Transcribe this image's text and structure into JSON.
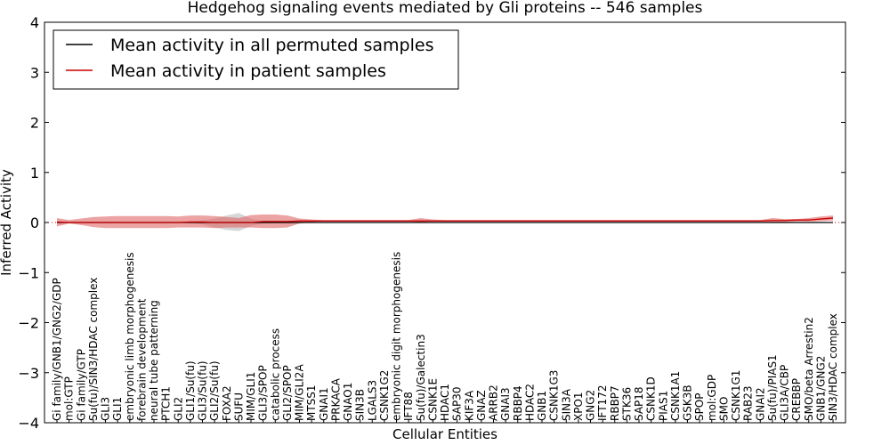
{
  "chart_data": {
    "type": "line",
    "title": "Hedgehog signaling events mediated by Gli proteins -- 546 samples",
    "xlabel": "Cellular Entities",
    "ylabel": "Inferred Activity",
    "ylim": [
      -4,
      4
    ],
    "yticks": [
      -4,
      -3,
      -2,
      -1,
      0,
      1,
      2,
      3,
      4
    ],
    "ytick_labels": [
      "−4",
      "−3",
      "−2",
      "−1",
      "0",
      "1",
      "2",
      "3",
      "4"
    ],
    "legend_position": "top-left",
    "colors": {
      "permuted": "#000000",
      "patient": "#cc0000",
      "band": "#e06666",
      "perm_band": "#bbbbbb"
    },
    "categories": [
      "Gi family/GNB1/GNG2/GDP",
      "mol:GTP",
      "Gi family/GTP",
      "Su(fu)/SIN3/HDAC complex",
      "GLI3",
      "GLI1",
      "embryonic limb morphogenesis",
      "forebrain development",
      "neural tube patterning",
      "PTCH1",
      "GLI2",
      "GLI1/Su(fu)",
      "GLI3/Su(fu)",
      "GLI2/Su(fu)",
      "FOXA2",
      "SUFU",
      "MIM/GLI1",
      "GLI3/SPOP",
      "catabolic process",
      "GLI2/SPOP",
      "MIM/GLI2A",
      "MTSS1",
      "GNAI1",
      "PRKACA",
      "GNAO1",
      "SIN3B",
      "LGALS3",
      "CSNK1G2",
      "embryonic digit morphogenesis",
      "IFT88",
      "Su(fu)/Galectin3",
      "CSNK1E",
      "HDAC1",
      "SAP30",
      "KIF3A",
      "GNAZ",
      "ARRB2",
      "GNAI3",
      "RBBP4",
      "HDAC2",
      "GNB1",
      "CSNK1G3",
      "SIN3A",
      "XPO1",
      "GNG2",
      "IFT172",
      "RBBP7",
      "STK36",
      "SAP18",
      "CSNK1D",
      "PIAS1",
      "CSNK1A1",
      "GSK3B",
      "SPOP",
      "mol:GDP",
      "SMO",
      "CSNK1G1",
      "RAB23",
      "GNAI2",
      "Su(fu)/PIAS1",
      "GLI3A/CBP",
      "CREBBP",
      "SMO/beta Arrestin2",
      "GNB1/GNG2",
      "SIN3/HDAC complex"
    ],
    "series": [
      {
        "name": "Mean activity in all permuted samples",
        "values": [
          0,
          0,
          0,
          0,
          0,
          0,
          0,
          0,
          0,
          0,
          0,
          0,
          0,
          0,
          0,
          0,
          0,
          0,
          0,
          0,
          0,
          0,
          0,
          0,
          0,
          0,
          0,
          0,
          0,
          0,
          0,
          0,
          0,
          0,
          0,
          0,
          0,
          0,
          0,
          0,
          0,
          0,
          0,
          0,
          0,
          0,
          0,
          0,
          0,
          0,
          0,
          0,
          0,
          0,
          0,
          0,
          0,
          0,
          0,
          0,
          0,
          0,
          0,
          0,
          0
        ]
      },
      {
        "name": "Mean activity in patient samples",
        "values": [
          0.01,
          0.0,
          0.0,
          0.0,
          0.0,
          0.0,
          0.0,
          0.0,
          0.0,
          0.0,
          0.0,
          0.01,
          0.01,
          0.0,
          0.0,
          0.0,
          0.0,
          0.02,
          0.02,
          0.02,
          0.03,
          0.03,
          0.03,
          0.03,
          0.03,
          0.03,
          0.03,
          0.03,
          0.03,
          0.03,
          0.03,
          0.03,
          0.03,
          0.03,
          0.03,
          0.03,
          0.03,
          0.03,
          0.03,
          0.03,
          0.03,
          0.03,
          0.03,
          0.03,
          0.03,
          0.03,
          0.03,
          0.03,
          0.03,
          0.03,
          0.03,
          0.03,
          0.03,
          0.03,
          0.03,
          0.03,
          0.03,
          0.03,
          0.03,
          0.04,
          0.04,
          0.05,
          0.05,
          0.07,
          0.09
        ]
      }
    ],
    "patient_band": {
      "upper": [
        0.09,
        0.05,
        0.08,
        0.11,
        0.12,
        0.13,
        0.13,
        0.13,
        0.13,
        0.13,
        0.12,
        0.14,
        0.14,
        0.13,
        0.11,
        0.09,
        0.15,
        0.16,
        0.16,
        0.14,
        0.08,
        0.06,
        0.05,
        0.05,
        0.05,
        0.05,
        0.05,
        0.05,
        0.05,
        0.05,
        0.09,
        0.06,
        0.05,
        0.05,
        0.05,
        0.05,
        0.05,
        0.05,
        0.05,
        0.05,
        0.05,
        0.05,
        0.05,
        0.05,
        0.05,
        0.05,
        0.05,
        0.05,
        0.05,
        0.05,
        0.05,
        0.05,
        0.05,
        0.05,
        0.05,
        0.05,
        0.05,
        0.05,
        0.05,
        0.09,
        0.07,
        0.07,
        0.09,
        0.12,
        0.14
      ],
      "lower": [
        -0.08,
        -0.02,
        -0.05,
        -0.09,
        -0.11,
        -0.11,
        -0.11,
        -0.11,
        -0.11,
        -0.11,
        -0.1,
        -0.1,
        -0.1,
        -0.11,
        -0.1,
        -0.1,
        -0.1,
        -0.11,
        -0.11,
        -0.1,
        -0.02,
        0.01,
        0.02,
        0.02,
        0.02,
        0.02,
        0.02,
        0.02,
        0.02,
        0.02,
        0.01,
        0.02,
        0.02,
        0.02,
        0.02,
        0.02,
        0.02,
        0.02,
        0.02,
        0.02,
        0.02,
        0.02,
        0.02,
        0.02,
        0.02,
        0.02,
        0.02,
        0.02,
        0.02,
        0.02,
        0.02,
        0.02,
        0.02,
        0.02,
        0.02,
        0.02,
        0.02,
        0.02,
        0.02,
        0.01,
        0.01,
        0.02,
        0.02,
        0.03,
        0.04
      ]
    },
    "permuted_band": {
      "upper": [
        0.0,
        0.0,
        0.0,
        0.0,
        0.0,
        0.0,
        0.0,
        0.0,
        0.0,
        0.0,
        0.0,
        0.0,
        0.04,
        0.08,
        0.14,
        0.19,
        0.08,
        0.02,
        0.0,
        0.0,
        0.0,
        0.0,
        0.0,
        0.0,
        0.0,
        0.0,
        0.0,
        0.0,
        0.0,
        0.0,
        0.0,
        0.0,
        0.0,
        0.0,
        0.0,
        0.0,
        0.0,
        0.0,
        0.0,
        0.0,
        0.0,
        0.0,
        0.0,
        0.0,
        0.0,
        0.0,
        0.0,
        0.0,
        0.0,
        0.0,
        0.0,
        0.0,
        0.0,
        0.0,
        0.0,
        0.0,
        0.0,
        0.0,
        0.0,
        0.0,
        0.0,
        0.0,
        0.0,
        0.0,
        0.0
      ],
      "lower": [
        0.0,
        0.0,
        0.0,
        0.0,
        0.0,
        0.0,
        0.0,
        0.0,
        0.0,
        0.0,
        0.0,
        0.0,
        -0.04,
        -0.1,
        -0.15,
        -0.17,
        -0.07,
        -0.02,
        0.0,
        0.0,
        0.0,
        0.0,
        0.0,
        0.0,
        0.0,
        0.0,
        0.0,
        0.0,
        0.0,
        0.0,
        0.0,
        0.0,
        0.0,
        0.0,
        0.0,
        0.0,
        0.0,
        0.0,
        0.0,
        0.0,
        0.0,
        0.0,
        0.0,
        0.0,
        0.0,
        0.0,
        0.0,
        0.0,
        0.0,
        0.0,
        0.0,
        0.0,
        0.0,
        0.0,
        0.0,
        0.0,
        0.0,
        0.0,
        0.0,
        0.0,
        0.0,
        0.0,
        0.0,
        0.0,
        0.0
      ]
    }
  }
}
